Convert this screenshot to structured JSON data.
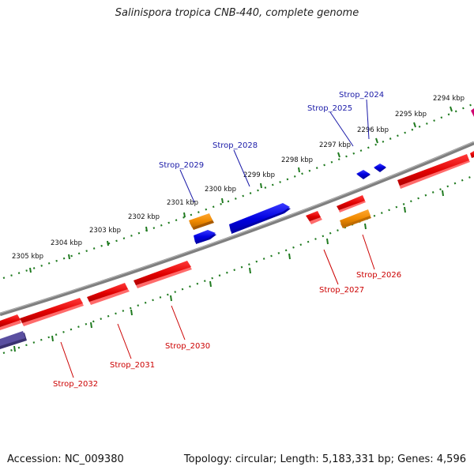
{
  "title": "Salinispora tropica CNB-440, complete genome",
  "footer": {
    "accession": "Accession: NC_009380",
    "summary": "Topology: circular; Length: 5,183,331 bp; Genes: 4,596"
  },
  "colors": {
    "background": "#ffffff",
    "backbone": "#7f7f7f",
    "tick_dots": "#1f7a1f",
    "forward_gene": "#0000e0",
    "reverse_gene": "#e00000",
    "orange_gene": "#f08a00",
    "purple_gene": "#4a3f8c",
    "magenta_gene": "#d0006f",
    "forward_label": "#1a1aa8",
    "reverse_label": "#cc0000"
  },
  "scale_labels": [
    "2294 kbp",
    "2295 kbp",
    "2296 kbp",
    "2297 kbp",
    "2298 kbp",
    "2299 kbp",
    "2300 kbp",
    "2301 kbp",
    "2302 kbp",
    "2303 kbp",
    "2304 kbp",
    "2305 kbp"
  ],
  "gene_labels_forward": [
    "Strop_2024",
    "Strop_2025",
    "Strop_2028",
    "Strop_2029"
  ],
  "gene_labels_reverse": [
    "Strop_2026",
    "Strop_2027",
    "Strop_2030",
    "Strop_2031",
    "Strop_2032"
  ]
}
